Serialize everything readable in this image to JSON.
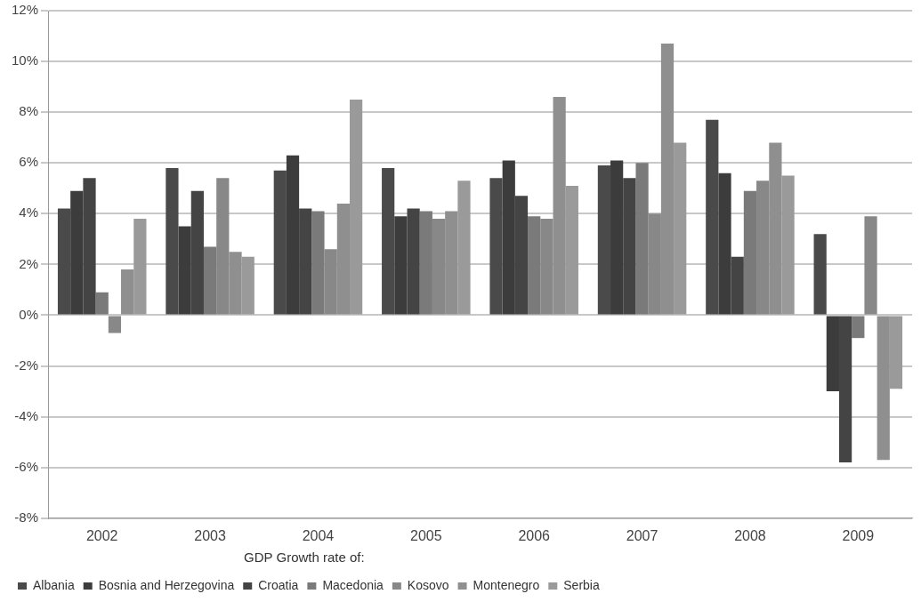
{
  "chart_data": {
    "type": "bar",
    "categories": [
      "2002",
      "2003",
      "2004",
      "2005",
      "2006",
      "2007",
      "2008",
      "2009"
    ],
    "legend_title": "GDP Growth rate of:",
    "series": [
      {
        "name": "Albania",
        "color": "#4a4a4a",
        "values": [
          4.2,
          5.8,
          5.7,
          5.8,
          5.4,
          5.9,
          7.7,
          3.2
        ]
      },
      {
        "name": "Bosnia and Herzegovina",
        "color": "#3c3c3c",
        "values": [
          4.9,
          3.5,
          6.3,
          3.9,
          6.1,
          6.1,
          5.6,
          -3.0
        ]
      },
      {
        "name": "Croatia",
        "color": "#444444",
        "values": [
          5.4,
          4.9,
          4.2,
          4.2,
          4.7,
          5.4,
          2.3,
          -5.8
        ]
      },
      {
        "name": "Macedonia",
        "color": "#7a7a7a",
        "values": [
          0.9,
          2.7,
          4.1,
          4.1,
          3.9,
          6.0,
          4.9,
          -0.9
        ]
      },
      {
        "name": "Kosovo",
        "color": "#888888",
        "values": [
          -0.7,
          5.4,
          2.6,
          3.8,
          3.8,
          4.0,
          5.3,
          3.9
        ]
      },
      {
        "name": "Montenegro",
        "color": "#8f8f8f",
        "values": [
          1.8,
          2.5,
          4.4,
          4.1,
          8.6,
          10.7,
          6.8,
          -5.7
        ]
      },
      {
        "name": "Serbia",
        "color": "#9a9a9a",
        "values": [
          3.8,
          2.3,
          8.5,
          5.3,
          5.1,
          6.8,
          5.5,
          -2.9
        ]
      }
    ],
    "ylim": [
      -8,
      12
    ],
    "yticks": [
      {
        "value": -8,
        "label": "-8%"
      },
      {
        "value": -6,
        "label": "-6%"
      },
      {
        "value": -4,
        "label": "-4%"
      },
      {
        "value": -2,
        "label": "-2%"
      },
      {
        "value": 0,
        "label": "0%"
      },
      {
        "value": 2,
        "label": "2%"
      },
      {
        "value": 4,
        "label": "4%"
      },
      {
        "value": 6,
        "label": "6%"
      },
      {
        "value": 8,
        "label": "8%"
      },
      {
        "value": 10,
        "label": "10%"
      },
      {
        "value": 12,
        "label": "12%"
      }
    ],
    "grid": "y",
    "legend": "bottom left"
  }
}
